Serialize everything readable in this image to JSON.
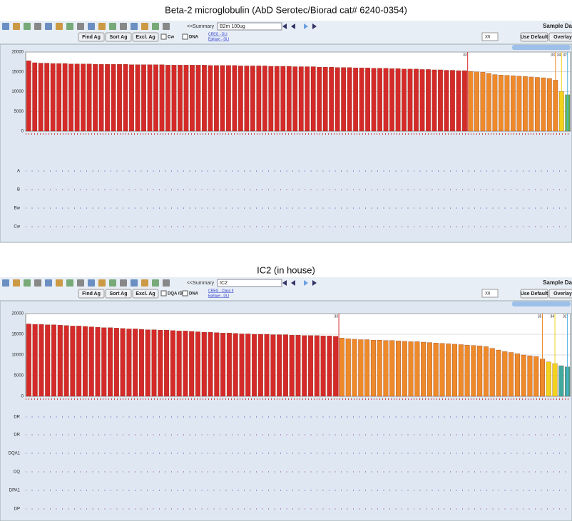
{
  "panels": [
    {
      "title": "Beta-2 microglobulin (AbD Serotec/Biorad cat# 6240-0354)",
      "toolbar": {
        "summary": "<<Summary",
        "sample": "B2m 100ug",
        "buttons": [
          "Find Ag",
          "Sort Ag",
          "Excl. Ag"
        ],
        "checks": [
          "Cw",
          "DNA"
        ],
        "links": [
          "CREG - DLI",
          "Epitope - DLI"
        ],
        "select": "X6",
        "right_buttons": [
          "Use Default",
          "Overlay"
        ],
        "corner": "Sample Da"
      },
      "chart_data": {
        "type": "bar",
        "ylim": [
          0,
          20000
        ],
        "yticks": [
          0,
          5000,
          10000,
          15000,
          20000
        ],
        "series": [
          {
            "color": "#d42a2a",
            "cutoff": "33",
            "values": [
              17800,
              17300,
              17200,
              17200,
              17100,
              17100,
              17100,
              17000,
              17000,
              17000,
              17000,
              16900,
              16900,
              16900,
              16900,
              16900,
              16900,
              16800,
              16800,
              16800,
              16800,
              16800,
              16800,
              16700,
              16700,
              16700,
              16700,
              16700,
              16700,
              16700,
              16600,
              16600,
              16600,
              16600,
              16600,
              16500,
              16500,
              16500,
              16500,
              16500,
              16400,
              16400,
              16400,
              16400,
              16300,
              16300,
              16300,
              16300,
              16200,
              16200,
              16200,
              16100,
              16100,
              16100,
              16000,
              16000,
              16000,
              15900,
              15900,
              15900,
              15800,
              15800,
              15700,
              15700,
              15700,
              15600,
              15600,
              15500,
              15500,
              15400,
              15400,
              15300,
              15300
            ]
          },
          {
            "color": "#ee8a2a",
            "cutoff": "33",
            "values": [
              15100,
              15000,
              14900,
              14600,
              14300,
              14200,
              14100,
              14000,
              13900,
              13800,
              13700,
              13600,
              13500,
              13300,
              12900
            ]
          },
          {
            "color": "#f2d21c",
            "cutoff": "34",
            "values": [
              10000
            ]
          },
          {
            "color": "#5cb85c",
            "cutoff": "32",
            "values": [
              9200
            ]
          }
        ]
      },
      "rows": [
        "A",
        "B",
        "Bw",
        "Cw"
      ]
    },
    {
      "title": "IC2 (in house)",
      "toolbar": {
        "summary": "<<Summary",
        "sample": "IC2",
        "buttons": [
          "Find Ag",
          "Sort Ag",
          "Excl. Ag"
        ],
        "checks": [
          "DQA /DPA",
          "DNA"
        ],
        "links": [
          "CREG - Class II",
          "Epitope - DLI"
        ],
        "select": "X6",
        "right_buttons": [
          "Use Default",
          "Overlay"
        ],
        "corner": "Sample Da"
      },
      "chart_data": {
        "type": "bar",
        "ylim": [
          0,
          20000
        ],
        "yticks": [
          0,
          5000,
          10000,
          15000,
          20000
        ],
        "series": [
          {
            "color": "#d42a2a",
            "cutoff": "33",
            "values": [
              17500,
              17400,
              17400,
              17300,
              17300,
              17200,
              17100,
              17000,
              17000,
              16900,
              16800,
              16700,
              16600,
              16600,
              16500,
              16400,
              16300,
              16300,
              16200,
              16100,
              16100,
              16000,
              16000,
              15900,
              15800,
              15800,
              15700,
              15600,
              15500,
              15500,
              15400,
              15300,
              15300,
              15200,
              15100,
              15100,
              15000,
              15000,
              15000,
              14900,
              14900,
              14900,
              14800,
              14800,
              14700,
              14700,
              14700,
              14600,
              14600,
              14500
            ]
          },
          {
            "color": "#ee8a2a",
            "cutoff": "35",
            "values": [
              14100,
              13900,
              13800,
              13700,
              13700,
              13600,
              13600,
              13500,
              13500,
              13400,
              13300,
              13200,
              13200,
              13100,
              13000,
              12900,
              12800,
              12700,
              12600,
              12500,
              12400,
              12300,
              12200,
              12000,
              11600,
              11200,
              10800,
              10600,
              10300,
              10000,
              9800,
              9600,
              9000
            ]
          },
          {
            "color": "#f2d21c",
            "cutoff": "34",
            "values": [
              8300,
              7900
            ]
          },
          {
            "color": "#3fa9a0",
            "cutoff": "32",
            "values": [
              7400,
              7100
            ]
          }
        ]
      },
      "rows": [
        "DR",
        "DR",
        "DQA1",
        "DQ",
        "DPA1",
        "DP"
      ]
    }
  ]
}
